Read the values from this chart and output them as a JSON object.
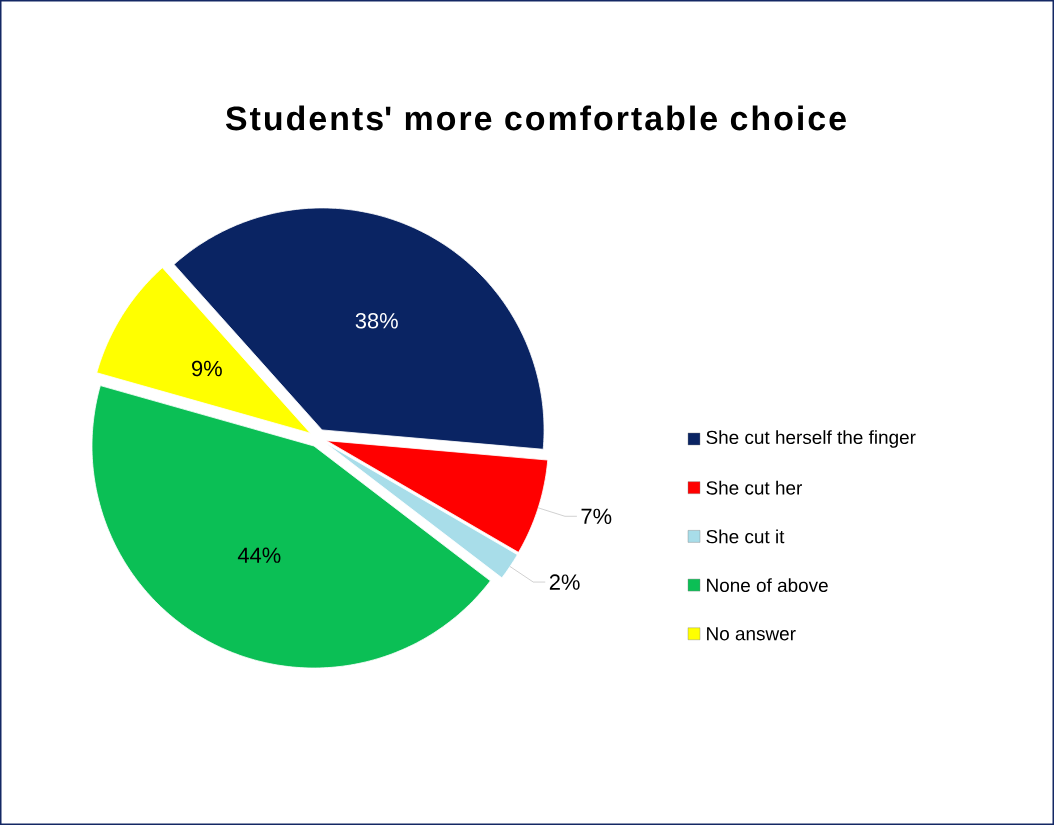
{
  "chart_data": {
    "type": "pie",
    "title": "Students' more comfortable choice",
    "categories": [
      "She cut herself the finger",
      "She cut her",
      "She cut it",
      "None of above",
      "No answer"
    ],
    "values": [
      38,
      7,
      2,
      44,
      9
    ],
    "colors": [
      "#0a2463",
      "#ff0000",
      "#a8dde9",
      "#0bbf55",
      "#ffff00"
    ],
    "value_labels": [
      "38%",
      "7%",
      "2%",
      "44%",
      "9%"
    ],
    "legend": "right"
  }
}
